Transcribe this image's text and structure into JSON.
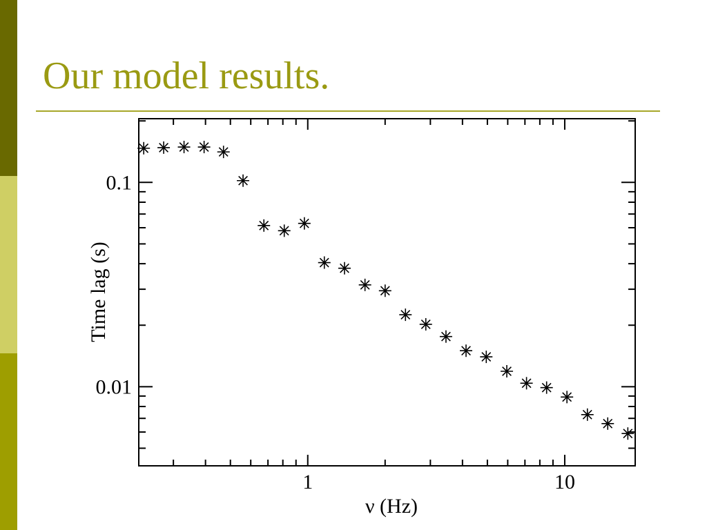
{
  "slide": {
    "title": "Our model results.",
    "colors": {
      "title": "#9a9a12",
      "rule": "#a7a728",
      "sidebar_dark": "#696900",
      "sidebar_light": "#cfcf64",
      "sidebar_mid": "#9e9e00"
    }
  },
  "chart_data": {
    "type": "scatter",
    "title": "",
    "xlabel": "ν (Hz)",
    "ylabel": "Time lag (s)",
    "xscale": "log",
    "yscale": "log",
    "xlim": [
      0.22,
      18.8
    ],
    "ylim": [
      0.0041,
      0.205
    ],
    "grid": false,
    "marker": "asterisk",
    "xticks": [
      {
        "value": 1,
        "label": "1"
      },
      {
        "value": 10,
        "label": "10"
      }
    ],
    "yticks": [
      {
        "value": 0.1,
        "label": "0.1"
      },
      {
        "value": 0.01,
        "label": "0.01"
      }
    ],
    "series": [
      {
        "x": [
          0.23,
          0.275,
          0.33,
          0.395,
          0.47,
          0.56,
          0.675,
          0.81,
          0.97,
          1.16,
          1.39,
          1.67,
          2.0,
          2.4,
          2.88,
          3.45,
          4.13,
          4.95,
          5.95,
          7.1,
          8.5,
          10.2,
          12.25,
          14.7,
          17.6
        ],
        "y": [
          0.147,
          0.148,
          0.149,
          0.149,
          0.141,
          0.102,
          0.0615,
          0.058,
          0.063,
          0.0405,
          0.038,
          0.0315,
          0.0295,
          0.0225,
          0.0202,
          0.0176,
          0.015,
          0.014,
          0.0119,
          0.0104,
          0.0099,
          0.0089,
          0.0073,
          0.0066,
          0.0059
        ]
      }
    ]
  }
}
